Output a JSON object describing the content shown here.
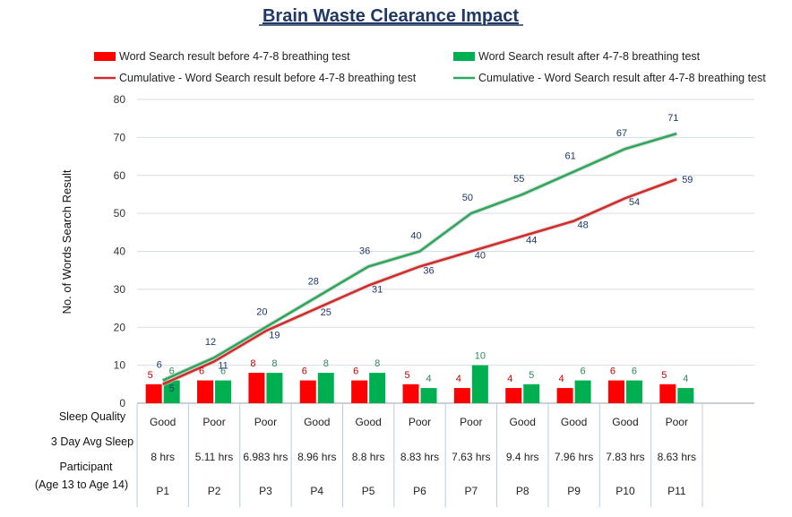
{
  "chart_data": {
    "type": "bar",
    "title": "Brain Waste Clearance Impact",
    "ylabel": "No. of  Words Search Result",
    "ylim": [
      0,
      80
    ],
    "yticks": [
      0,
      10,
      20,
      30,
      40,
      50,
      60,
      70,
      80
    ],
    "grid": true,
    "legend_position": "top",
    "categories": [
      "P1",
      "P2",
      "P3",
      "P4",
      "P5",
      "P6",
      "P7",
      "P8",
      "P9",
      "P10",
      "P11"
    ],
    "series": [
      {
        "name": "Word Search result before 4-7-8 breathing test",
        "type": "bar",
        "color": "#ff0000",
        "values": [
          5,
          6,
          8,
          6,
          6,
          5,
          4,
          4,
          4,
          6,
          5
        ]
      },
      {
        "name": "Word Search result after 4-7-8 breathing test",
        "type": "bar",
        "color": "#00b050",
        "values": [
          6,
          6,
          8,
          8,
          8,
          4,
          10,
          5,
          6,
          6,
          4
        ]
      },
      {
        "name": "Cumulative - Word Search result before 4-7-8 breathing test",
        "type": "line",
        "color": "#d42a2a",
        "values": [
          5,
          11,
          19,
          25,
          31,
          36,
          40,
          44,
          48,
          54,
          59
        ]
      },
      {
        "name": "Cumulative - Word Search result after 4-7-8 breathing test",
        "type": "line",
        "color": "#2ca85a",
        "values": [
          6,
          12,
          20,
          28,
          36,
          40,
          50,
          55,
          61,
          67,
          71
        ]
      }
    ],
    "table": {
      "rows": [
        {
          "label": "Sleep Quality",
          "values": [
            "Good",
            "Poor",
            "Poor",
            "Good",
            "Good",
            "Poor",
            "Poor",
            "Good",
            "Good",
            "Good",
            "Poor"
          ]
        },
        {
          "label": "3 Day Avg Sleep",
          "values": [
            "8 hrs",
            "5.11 hrs",
            "6.983 hrs",
            "8.96 hrs",
            "8.8 hrs",
            "8.83 hrs",
            "7.63 hrs",
            "9.4 hrs",
            "7.96 hrs",
            "7.83 hrs",
            "8.63 hrs"
          ]
        }
      ],
      "participant_label_line1": "Participant",
      "participant_label_line2": "(Age 13 to Age 14)"
    }
  }
}
